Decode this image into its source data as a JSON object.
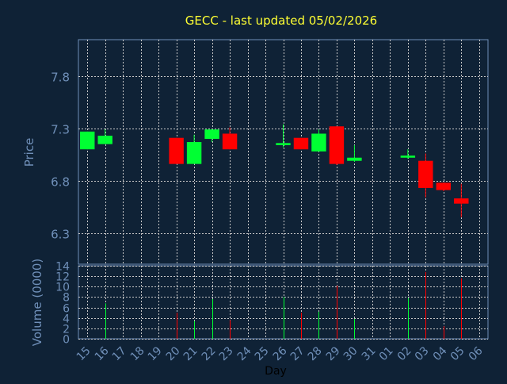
{
  "title": "GECC - last updated 05/02/2026",
  "colors": {
    "background": "#0f2236",
    "title": "#ffff33",
    "axis_text": "#6f8fb8",
    "xlabel_text": "#000000",
    "up": "#00ff33",
    "down": "#ff0000",
    "grid": "#c8c8c8",
    "frame": "#6f8fb8"
  },
  "chart_data": [
    {
      "type": "candlestick",
      "ylabel": "Price",
      "ylim": [
        6.0,
        8.15
      ],
      "yticks": [
        6.3,
        6.8,
        7.3,
        7.8
      ],
      "grid": true,
      "x": [
        "15",
        "16",
        "17",
        "18",
        "19",
        "20",
        "21",
        "22",
        "23",
        "24",
        "25",
        "26",
        "27",
        "28",
        "29",
        "30",
        "31",
        "01",
        "02",
        "03",
        "04",
        "05",
        "06"
      ],
      "candles": [
        {
          "day": "15",
          "open": 7.1,
          "high": 7.27,
          "low": 7.1,
          "close": 7.27
        },
        {
          "day": "16",
          "open": 7.15,
          "high": 7.29,
          "low": 7.15,
          "close": 7.23
        },
        {
          "day": "20",
          "open": 7.21,
          "high": 7.21,
          "low": 6.96,
          "close": 6.96
        },
        {
          "day": "21",
          "open": 6.96,
          "high": 7.24,
          "low": 6.96,
          "close": 7.17
        },
        {
          "day": "22",
          "open": 7.2,
          "high": 7.29,
          "low": 7.17,
          "close": 7.29
        },
        {
          "day": "23",
          "open": 7.25,
          "high": 7.31,
          "low": 7.1,
          "close": 7.1
        },
        {
          "day": "26",
          "open": 7.14,
          "high": 7.34,
          "low": 7.12,
          "close": 7.16
        },
        {
          "day": "27",
          "open": 7.21,
          "high": 7.21,
          "low": 7.1,
          "close": 7.1
        },
        {
          "day": "28",
          "open": 7.08,
          "high": 7.29,
          "low": 7.08,
          "close": 7.25
        },
        {
          "day": "29",
          "open": 7.32,
          "high": 7.32,
          "low": 6.95,
          "close": 6.96
        },
        {
          "day": "30",
          "open": 6.99,
          "high": 7.14,
          "low": 6.98,
          "close": 7.02
        },
        {
          "day": "02",
          "open": 7.02,
          "high": 7.1,
          "low": 7.01,
          "close": 7.04
        },
        {
          "day": "03",
          "open": 6.99,
          "high": 7.06,
          "low": 6.64,
          "close": 6.73
        },
        {
          "day": "04",
          "open": 6.78,
          "high": 6.78,
          "low": 6.7,
          "close": 6.71
        },
        {
          "day": "05",
          "open": 6.63,
          "high": 6.77,
          "low": 6.45,
          "close": 6.58
        }
      ]
    },
    {
      "type": "bar",
      "ylabel": "Volume (0000)",
      "xlabel": "Day",
      "ylim": [
        0,
        14
      ],
      "yticks": [
        0,
        2,
        4,
        6,
        8,
        10,
        12,
        14
      ],
      "grid": true,
      "x": [
        "15",
        "16",
        "17",
        "18",
        "19",
        "20",
        "21",
        "22",
        "23",
        "24",
        "25",
        "26",
        "27",
        "28",
        "29",
        "30",
        "31",
        "01",
        "02",
        "03",
        "04",
        "05",
        "06"
      ],
      "bars": [
        {
          "day": "16",
          "value": 6.8,
          "direction": "up"
        },
        {
          "day": "20",
          "value": 5.0,
          "direction": "down"
        },
        {
          "day": "21",
          "value": 3.4,
          "direction": "up"
        },
        {
          "day": "22",
          "value": 7.6,
          "direction": "up"
        },
        {
          "day": "23",
          "value": 3.6,
          "direction": "down"
        },
        {
          "day": "26",
          "value": 8.0,
          "direction": "up"
        },
        {
          "day": "27",
          "value": 5.0,
          "direction": "down"
        },
        {
          "day": "28",
          "value": 5.2,
          "direction": "up"
        },
        {
          "day": "29",
          "value": 10.2,
          "direction": "down"
        },
        {
          "day": "30",
          "value": 3.8,
          "direction": "up"
        },
        {
          "day": "02",
          "value": 7.8,
          "direction": "up"
        },
        {
          "day": "03",
          "value": 12.8,
          "direction": "down"
        },
        {
          "day": "04",
          "value": 2.4,
          "direction": "down"
        },
        {
          "day": "05",
          "value": 11.6,
          "direction": "down"
        }
      ]
    }
  ]
}
